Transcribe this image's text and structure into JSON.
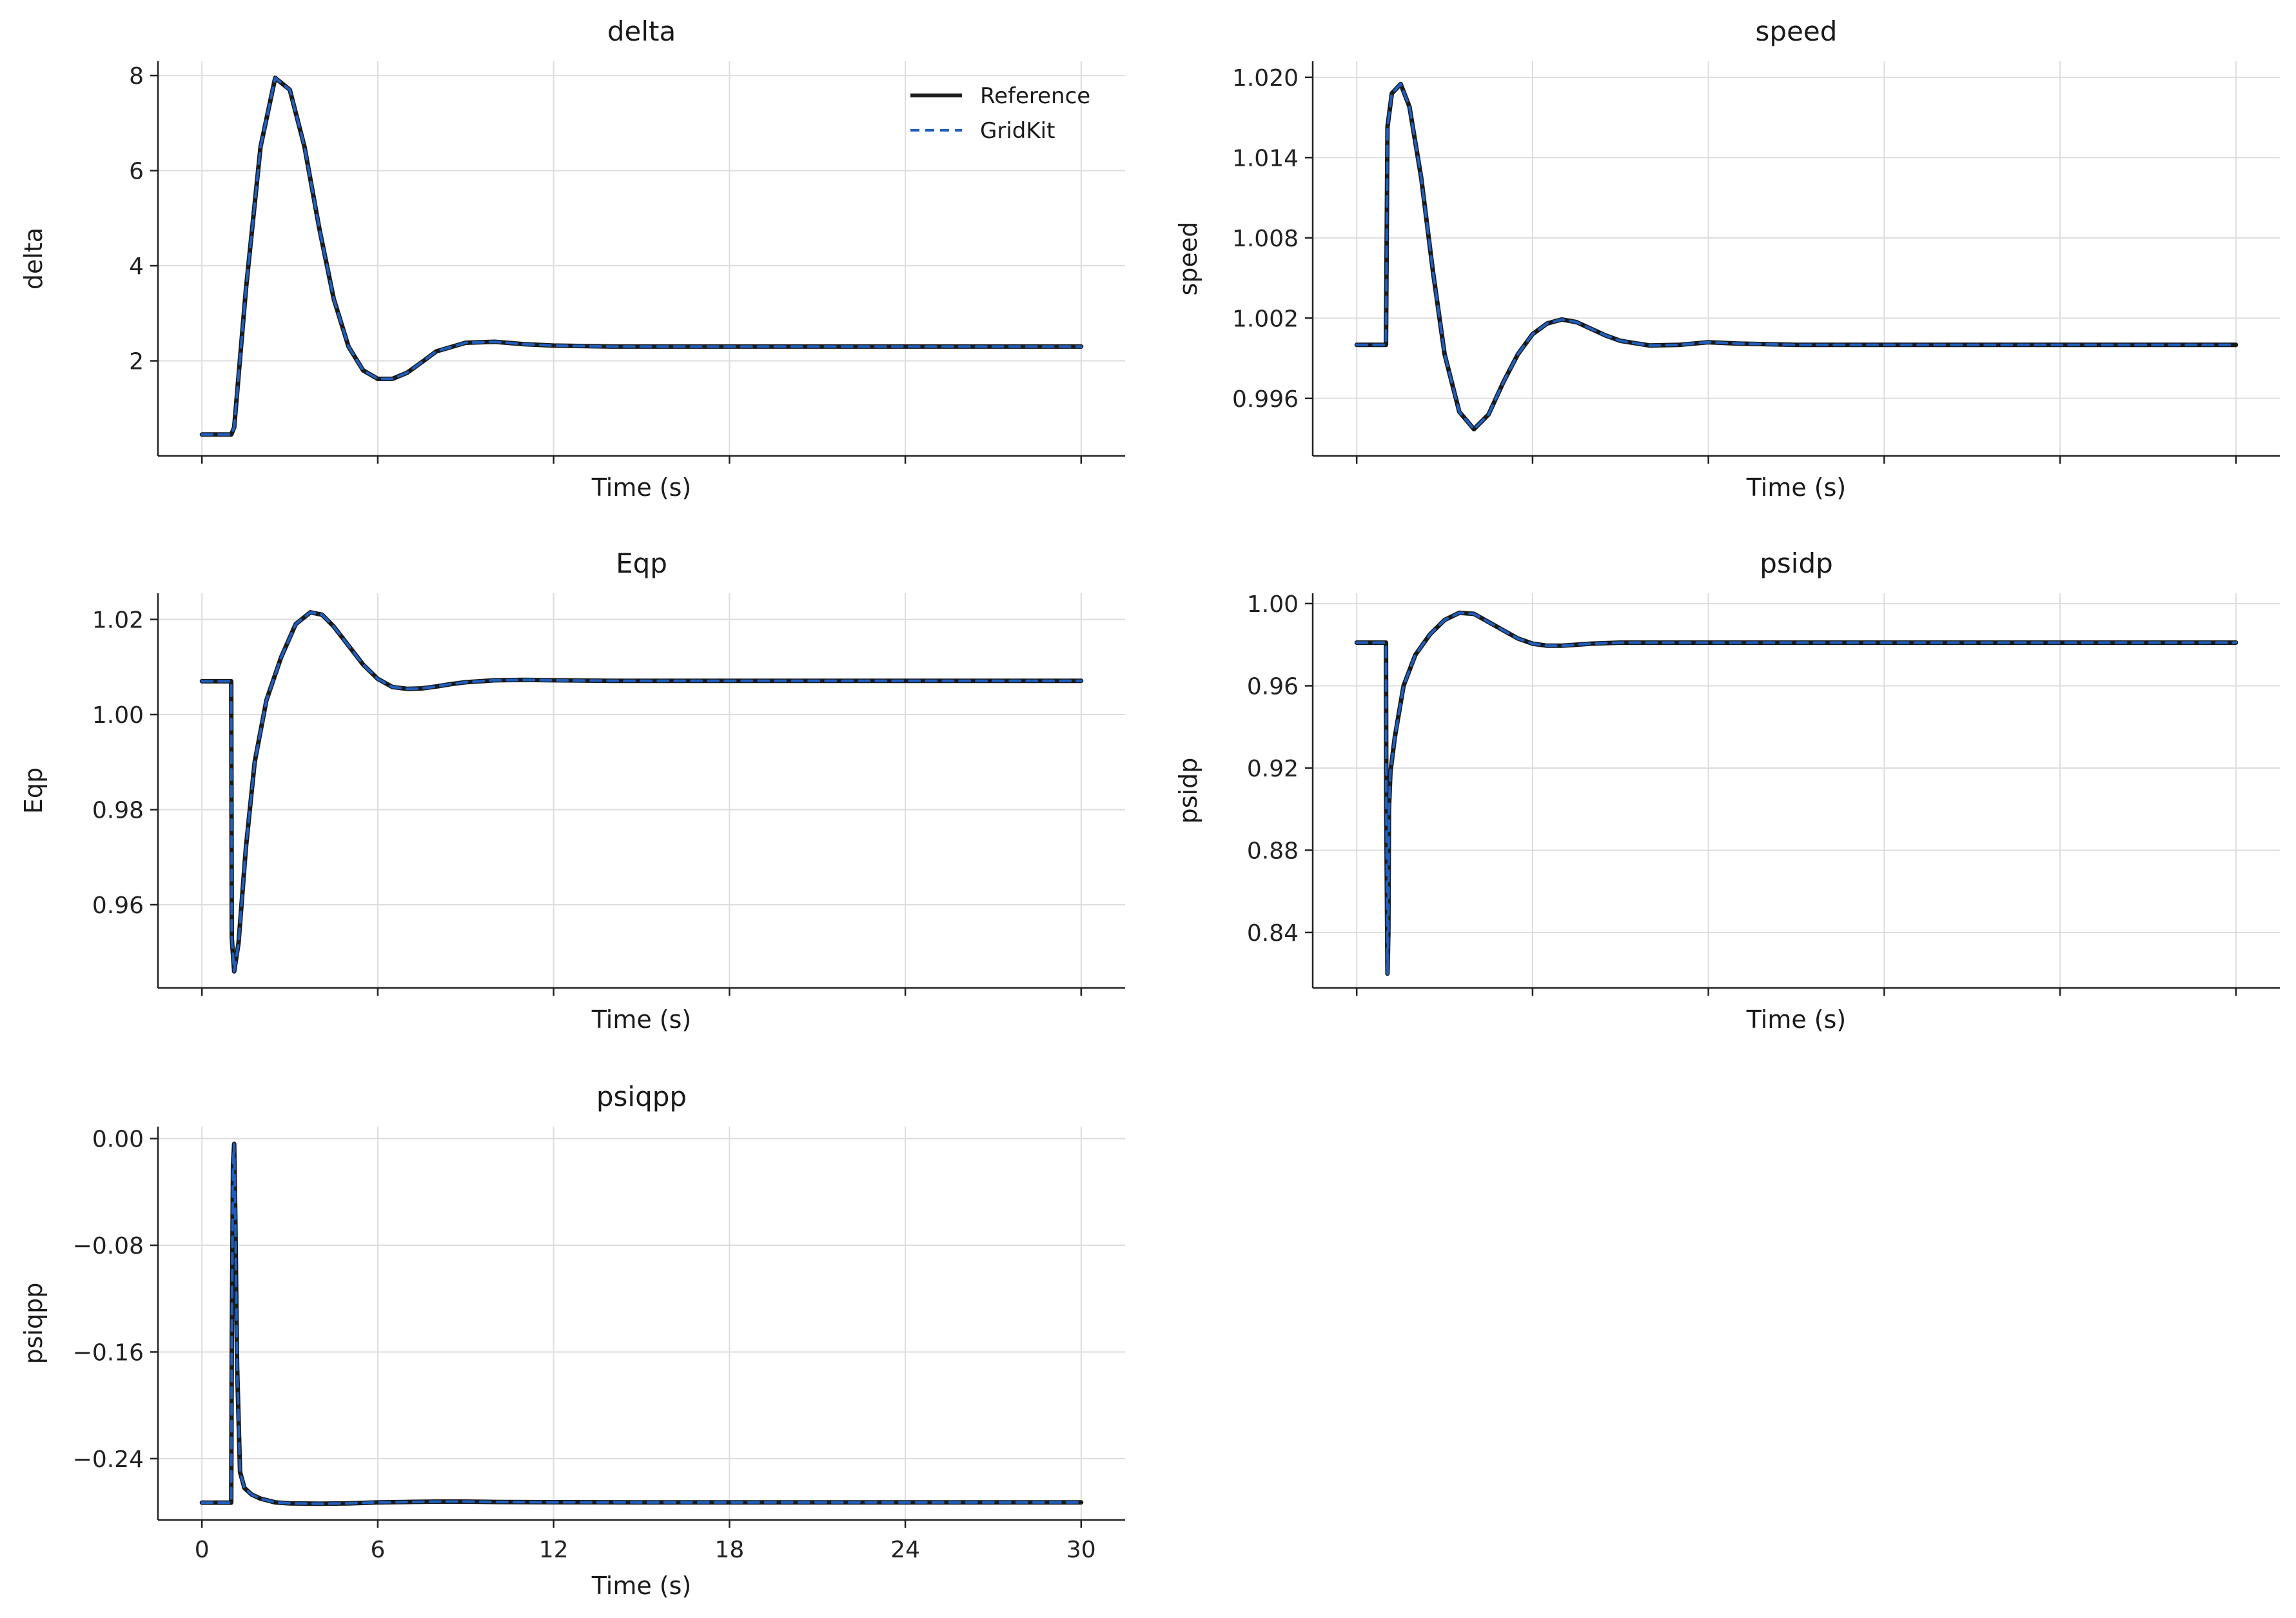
{
  "figure": {
    "colors": {
      "background": "#ffffff",
      "grid": "#dddddd",
      "axis": "#222222",
      "text": "#1a1a1a"
    },
    "grid": true,
    "legend": {
      "placement": "top-right of first panel",
      "entries": [
        {
          "label": "Reference",
          "color": "#1a1a1a",
          "style": "solid"
        },
        {
          "label": "GridKit",
          "color": "#1f5fbf",
          "style": "dashed"
        }
      ]
    }
  },
  "chart_data": [
    {
      "type": "line",
      "title": "delta",
      "xlabel": "Time (s)",
      "ylabel": "delta",
      "xlim": [
        -1.5,
        31.5
      ],
      "ylim": [
        0,
        8.3
      ],
      "xticks": [
        0,
        6,
        12,
        18,
        24,
        30
      ],
      "xtick_labels_visible": false,
      "yticks": [
        2,
        4,
        6,
        8
      ],
      "ytick_labels": [
        "2",
        "4",
        "6",
        "8"
      ],
      "series": [
        {
          "name": "Reference",
          "color": "#1a1a1a",
          "style": "solid",
          "x": [
            0,
            1.0,
            1.1,
            1.5,
            2.0,
            2.5,
            3.0,
            3.5,
            4.0,
            4.5,
            5.0,
            5.5,
            6.0,
            6.5,
            7.0,
            7.5,
            8.0,
            9.0,
            10.0,
            11.0,
            12.0,
            14.0,
            16.0,
            20.0,
            25.0,
            30.0
          ],
          "y": [
            0.45,
            0.45,
            0.6,
            3.5,
            6.5,
            7.95,
            7.7,
            6.5,
            4.8,
            3.3,
            2.3,
            1.8,
            1.62,
            1.62,
            1.75,
            1.97,
            2.2,
            2.38,
            2.4,
            2.35,
            2.32,
            2.3,
            2.3,
            2.3,
            2.3,
            2.3
          ]
        },
        {
          "name": "GridKit",
          "color": "#1f5fbf",
          "style": "dashed",
          "x": [
            0,
            1.0,
            1.1,
            1.5,
            2.0,
            2.5,
            3.0,
            3.5,
            4.0,
            4.5,
            5.0,
            5.5,
            6.0,
            6.5,
            7.0,
            7.5,
            8.0,
            9.0,
            10.0,
            11.0,
            12.0,
            14.0,
            16.0,
            20.0,
            25.0,
            30.0
          ],
          "y": [
            0.45,
            0.45,
            0.6,
            3.5,
            6.5,
            7.95,
            7.7,
            6.5,
            4.8,
            3.3,
            2.3,
            1.8,
            1.62,
            1.62,
            1.75,
            1.97,
            2.2,
            2.38,
            2.4,
            2.35,
            2.32,
            2.3,
            2.3,
            2.3,
            2.3,
            2.3
          ]
        }
      ]
    },
    {
      "type": "line",
      "title": "speed",
      "xlabel": "Time (s)",
      "ylabel": "speed",
      "xlim": [
        -1.5,
        31.5
      ],
      "ylim": [
        0.9917,
        1.0212
      ],
      "xticks": [
        0,
        6,
        12,
        18,
        24,
        30
      ],
      "xtick_labels_visible": false,
      "yticks": [
        0.996,
        1.002,
        1.008,
        1.014,
        1.02
      ],
      "ytick_labels": [
        "0.996",
        "1.002",
        "1.008",
        "1.014",
        "1.020"
      ],
      "series": [
        {
          "name": "Reference",
          "color": "#1a1a1a",
          "style": "solid",
          "x": [
            0,
            1.0,
            1.05,
            1.2,
            1.5,
            1.8,
            2.2,
            2.6,
            3.0,
            3.5,
            4.0,
            4.5,
            5.0,
            5.5,
            6.0,
            6.5,
            7.0,
            7.5,
            8.0,
            8.5,
            9.0,
            10.0,
            11.0,
            12.0,
            13.0,
            15.0,
            20.0,
            25.0,
            30.0
          ],
          "y": [
            1.0,
            1.0,
            1.0163,
            1.0188,
            1.0195,
            1.0178,
            1.0125,
            1.0055,
            0.9993,
            0.995,
            0.9937,
            0.9948,
            0.9972,
            0.9993,
            1.0008,
            1.0016,
            1.0019,
            1.0017,
            1.0012,
            1.0007,
            1.0003,
            0.99995,
            1.0,
            1.0002,
            1.0001,
            1.0,
            1.0,
            1.0,
            1.0
          ]
        },
        {
          "name": "GridKit",
          "color": "#1f5fbf",
          "style": "dashed",
          "x": [
            0,
            1.0,
            1.05,
            1.2,
            1.5,
            1.8,
            2.2,
            2.6,
            3.0,
            3.5,
            4.0,
            4.5,
            5.0,
            5.5,
            6.0,
            6.5,
            7.0,
            7.5,
            8.0,
            8.5,
            9.0,
            10.0,
            11.0,
            12.0,
            13.0,
            15.0,
            20.0,
            25.0,
            30.0
          ],
          "y": [
            1.0,
            1.0,
            1.0163,
            1.0188,
            1.0195,
            1.0178,
            1.0125,
            1.0055,
            0.9993,
            0.995,
            0.9937,
            0.9948,
            0.9972,
            0.9993,
            1.0008,
            1.0016,
            1.0019,
            1.0017,
            1.0012,
            1.0007,
            1.0003,
            0.99995,
            1.0,
            1.0002,
            1.0001,
            1.0,
            1.0,
            1.0,
            1.0
          ]
        }
      ]
    },
    {
      "type": "line",
      "title": "Eqp",
      "xlabel": "Time (s)",
      "ylabel": "Eqp",
      "xlim": [
        -1.5,
        31.5
      ],
      "ylim": [
        0.9425,
        1.0255
      ],
      "xticks": [
        0,
        6,
        12,
        18,
        24,
        30
      ],
      "xtick_labels_visible": false,
      "yticks": [
        0.96,
        0.98,
        1.0,
        1.02
      ],
      "ytick_labels": [
        "0.96",
        "0.98",
        "1.00",
        "1.02"
      ],
      "series": [
        {
          "name": "Reference",
          "color": "#1a1a1a",
          "style": "solid",
          "x": [
            0,
            1.0,
            1.02,
            1.1,
            1.25,
            1.5,
            1.8,
            2.2,
            2.7,
            3.2,
            3.7,
            4.1,
            4.5,
            5.0,
            5.5,
            6.0,
            6.5,
            7.0,
            7.5,
            8.0,
            8.5,
            9.0,
            10.0,
            11.0,
            12.0,
            14.0,
            20.0,
            25.0,
            30.0
          ],
          "y": [
            1.007,
            1.007,
            0.953,
            0.946,
            0.952,
            0.972,
            0.99,
            1.003,
            1.012,
            1.019,
            1.0215,
            1.021,
            1.0185,
            1.0145,
            1.0105,
            1.0075,
            1.0058,
            1.0054,
            1.0055,
            1.0059,
            1.0064,
            1.0068,
            1.0072,
            1.0073,
            1.0072,
            1.0071,
            1.0071,
            1.0071,
            1.0071
          ]
        },
        {
          "name": "GridKit",
          "color": "#1f5fbf",
          "style": "dashed",
          "x": [
            0,
            1.0,
            1.02,
            1.1,
            1.25,
            1.5,
            1.8,
            2.2,
            2.7,
            3.2,
            3.7,
            4.1,
            4.5,
            5.0,
            5.5,
            6.0,
            6.5,
            7.0,
            7.5,
            8.0,
            8.5,
            9.0,
            10.0,
            11.0,
            12.0,
            14.0,
            20.0,
            25.0,
            30.0
          ],
          "y": [
            1.007,
            1.007,
            0.953,
            0.946,
            0.952,
            0.972,
            0.99,
            1.003,
            1.012,
            1.019,
            1.0215,
            1.021,
            1.0185,
            1.0145,
            1.0105,
            1.0075,
            1.0058,
            1.0054,
            1.0055,
            1.0059,
            1.0064,
            1.0068,
            1.0072,
            1.0073,
            1.0072,
            1.0071,
            1.0071,
            1.0071,
            1.0071
          ]
        }
      ]
    },
    {
      "type": "line",
      "title": "psidp",
      "xlabel": "Time (s)",
      "ylabel": "psidp",
      "xlim": [
        -1.5,
        31.5
      ],
      "ylim": [
        0.813,
        1.005
      ],
      "xticks": [
        0,
        6,
        12,
        18,
        24,
        30
      ],
      "xtick_labels_visible": false,
      "yticks": [
        0.84,
        0.88,
        0.92,
        0.96,
        1.0
      ],
      "ytick_labels": [
        "0.84",
        "0.88",
        "0.92",
        "0.96",
        "1.00"
      ],
      "series": [
        {
          "name": "Reference",
          "color": "#1a1a1a",
          "style": "solid",
          "x": [
            0,
            1.0,
            1.01,
            1.05,
            1.08,
            1.1,
            1.15,
            1.3,
            1.6,
            2.0,
            2.5,
            3.0,
            3.5,
            4.0,
            4.5,
            5.0,
            5.5,
            6.0,
            6.5,
            7.0,
            7.5,
            8.0,
            9.0,
            10.0,
            11.0,
            12.0,
            15.0,
            20.0,
            25.0,
            30.0
          ],
          "y": [
            0.981,
            0.981,
            0.9,
            0.82,
            0.84,
            0.9,
            0.918,
            0.935,
            0.96,
            0.975,
            0.985,
            0.992,
            0.9955,
            0.995,
            0.991,
            0.987,
            0.983,
            0.9805,
            0.9795,
            0.9795,
            0.98,
            0.9805,
            0.981,
            0.981,
            0.981,
            0.981,
            0.981,
            0.981,
            0.981,
            0.981
          ]
        },
        {
          "name": "GridKit",
          "color": "#1f5fbf",
          "style": "dashed",
          "x": [
            0,
            1.0,
            1.01,
            1.05,
            1.08,
            1.1,
            1.15,
            1.3,
            1.6,
            2.0,
            2.5,
            3.0,
            3.5,
            4.0,
            4.5,
            5.0,
            5.5,
            6.0,
            6.5,
            7.0,
            7.5,
            8.0,
            9.0,
            10.0,
            11.0,
            12.0,
            15.0,
            20.0,
            25.0,
            30.0
          ],
          "y": [
            0.981,
            0.981,
            0.9,
            0.82,
            0.84,
            0.9,
            0.918,
            0.935,
            0.96,
            0.975,
            0.985,
            0.992,
            0.9955,
            0.995,
            0.991,
            0.987,
            0.983,
            0.9805,
            0.9795,
            0.9795,
            0.98,
            0.9805,
            0.981,
            0.981,
            0.981,
            0.981,
            0.981,
            0.981,
            0.981,
            0.981
          ]
        }
      ]
    },
    {
      "type": "line",
      "title": "psiqpp",
      "xlabel": "Time (s)",
      "ylabel": "psiqpp",
      "xlim": [
        -1.5,
        31.5
      ],
      "ylim": [
        -0.286,
        0.009
      ],
      "xticks": [
        0,
        6,
        12,
        18,
        24,
        30
      ],
      "xtick_labels_visible": true,
      "xtick_labels": [
        "0",
        "6",
        "12",
        "18",
        "24",
        "30"
      ],
      "yticks": [
        -0.24,
        -0.16,
        -0.08,
        0.0
      ],
      "ytick_labels": [
        "−0.24",
        "−0.16",
        "−0.08",
        "0.00"
      ],
      "series": [
        {
          "name": "Reference",
          "color": "#1a1a1a",
          "style": "solid",
          "x": [
            0,
            1.0,
            1.02,
            1.06,
            1.1,
            1.14,
            1.2,
            1.3,
            1.45,
            1.7,
            2.0,
            2.5,
            3.0,
            4.0,
            5.0,
            6.0,
            7.0,
            8.0,
            9.0,
            10.0,
            12.0,
            15.0,
            20.0,
            25.0,
            30.0
          ],
          "y": [
            -0.273,
            -0.273,
            -0.15,
            -0.02,
            -0.004,
            -0.06,
            -0.17,
            -0.25,
            -0.262,
            -0.267,
            -0.27,
            -0.2728,
            -0.2735,
            -0.2738,
            -0.2735,
            -0.2728,
            -0.2725,
            -0.2722,
            -0.2722,
            -0.2725,
            -0.2727,
            -0.2728,
            -0.2728,
            -0.2728,
            -0.2728
          ]
        },
        {
          "name": "GridKit",
          "color": "#1f5fbf",
          "style": "dashed",
          "x": [
            0,
            1.0,
            1.02,
            1.06,
            1.1,
            1.14,
            1.2,
            1.3,
            1.45,
            1.7,
            2.0,
            2.5,
            3.0,
            4.0,
            5.0,
            6.0,
            7.0,
            8.0,
            9.0,
            10.0,
            12.0,
            15.0,
            20.0,
            25.0,
            30.0
          ],
          "y": [
            -0.273,
            -0.273,
            -0.15,
            -0.02,
            -0.004,
            -0.06,
            -0.17,
            -0.25,
            -0.262,
            -0.267,
            -0.27,
            -0.2728,
            -0.2735,
            -0.2738,
            -0.2735,
            -0.2728,
            -0.2725,
            -0.2722,
            -0.2722,
            -0.2725,
            -0.2727,
            -0.2728,
            -0.2728,
            -0.2728,
            -0.2728
          ]
        }
      ]
    }
  ]
}
